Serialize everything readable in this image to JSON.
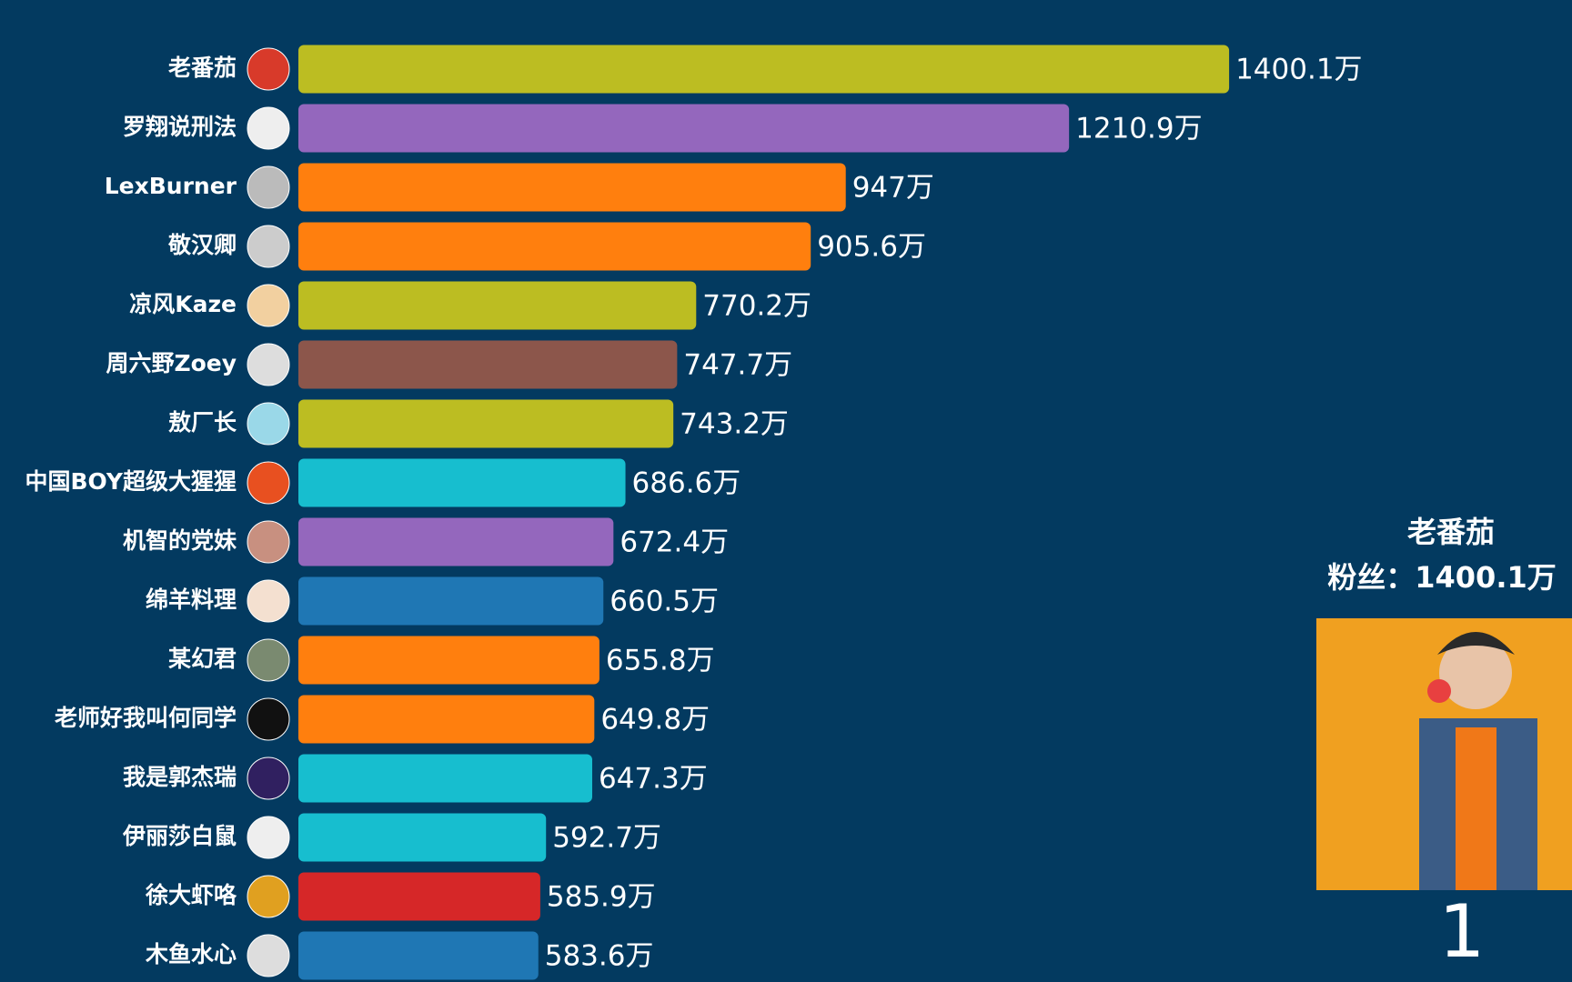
{
  "chart_data": {
    "type": "bar",
    "categories": [
      "老番茄",
      "罗翔说刑法",
      "LexBurner",
      "敬汉卿",
      "凉风Kaze",
      "周六野Zoey",
      "敖厂长",
      "中国BOY超级大猩猩",
      "机智的党妹",
      "绵羊料理",
      "某幻君",
      "老师好我叫何同学",
      "我是郭杰瑞",
      "伊丽莎白鼠",
      "徐大虾咯",
      "木鱼水心"
    ],
    "values": [
      1400.1,
      1210.9,
      947,
      905.6,
      770.2,
      747.7,
      743.2,
      686.6,
      672.4,
      660.5,
      655.8,
      649.8,
      647.3,
      592.7,
      585.9,
      583.6
    ],
    "value_labels": [
      "1400.1万",
      "1210.9万",
      "947万",
      "905.6万",
      "770.2万",
      "747.7万",
      "743.2万",
      "686.6万",
      "672.4万",
      "660.5万",
      "655.8万",
      "649.8万",
      "647.3万",
      "592.7万",
      "585.9万",
      "583.6万"
    ],
    "colors": [
      "#bcbd22",
      "#9467bd",
      "#ff7f0e",
      "#ff7f0e",
      "#bcbd22",
      "#8c564b",
      "#bcbd22",
      "#17becf",
      "#9467bd",
      "#1f77b4",
      "#ff7f0e",
      "#ff7f0e",
      "#17becf",
      "#17becf",
      "#d62728",
      "#1f77b4"
    ],
    "xlim": [
      300,
      1500
    ],
    "highlight": {
      "name": "老番茄",
      "label": "粉丝：1400.1万",
      "rank": 1
    }
  }
}
